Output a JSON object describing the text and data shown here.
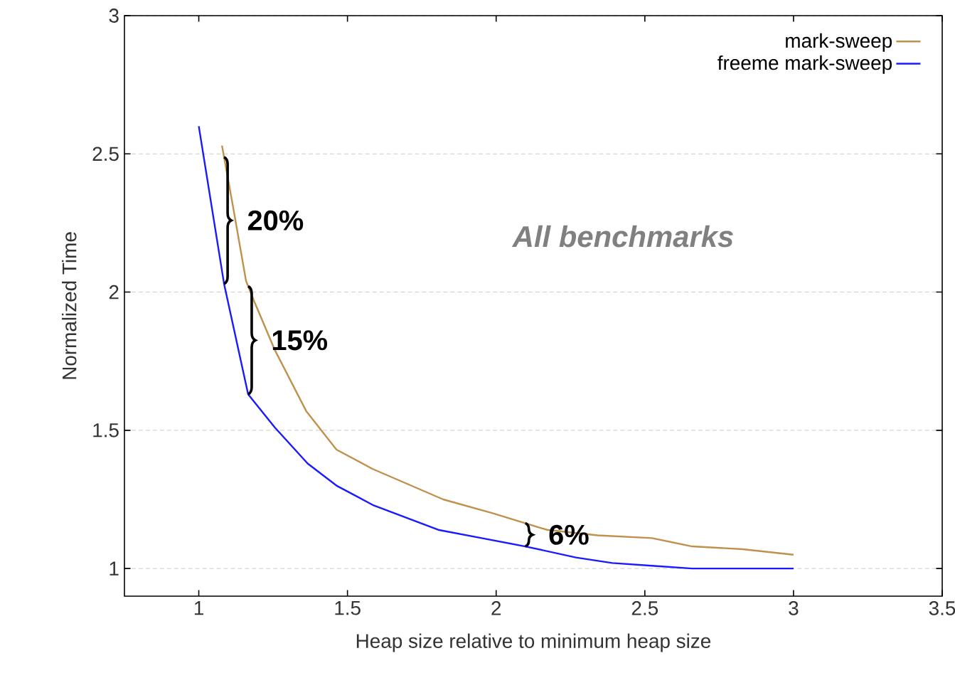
{
  "chart_data": {
    "type": "line",
    "xlabel": "Heap size relative to minimum heap size",
    "ylabel": "Normalized Time",
    "xlim": [
      0.75,
      3.5
    ],
    "ylim": [
      0.9,
      3
    ],
    "xticks": [
      1,
      1.5,
      2,
      2.5,
      3,
      3.5
    ],
    "yticks": [
      1,
      1.5,
      2,
      2.5,
      3
    ],
    "grid": "y",
    "legend": "top right",
    "marker": "none",
    "line_style": "solid",
    "series": [
      {
        "name": "mark-sweep",
        "color": "#c0904d",
        "x": [
          1.078,
          1.115,
          1.159,
          1.185,
          1.256,
          1.361,
          1.463,
          1.585,
          1.822,
          1.988,
          2.171,
          2.341,
          2.524,
          2.659,
          2.829,
          3.0
        ],
        "values": [
          2.53,
          2.31,
          2.04,
          1.97,
          1.79,
          1.57,
          1.43,
          1.36,
          1.25,
          1.2,
          1.14,
          1.12,
          1.11,
          1.08,
          1.07,
          1.05
        ]
      },
      {
        "name": "freeme mark-sweep",
        "color": "#1a1aff",
        "x": [
          1.0,
          1.085,
          1.166,
          1.256,
          1.366,
          1.463,
          1.585,
          1.805,
          1.951,
          2.098,
          2.268,
          2.39,
          2.524,
          2.659,
          2.829,
          3.0
        ],
        "values": [
          2.6,
          2.03,
          1.63,
          1.51,
          1.38,
          1.3,
          1.23,
          1.14,
          1.11,
          1.08,
          1.04,
          1.02,
          1.01,
          1.0,
          1.0,
          1.0
        ]
      }
    ],
    "annotations": [
      {
        "text": "20%",
        "x": 1.085,
        "y": 2.03
      },
      {
        "text": "15%",
        "x": 1.166,
        "y": 1.63
      },
      {
        "text": "6%",
        "x": 2.098,
        "y": 1.08
      },
      "All benchmarks"
    ]
  }
}
